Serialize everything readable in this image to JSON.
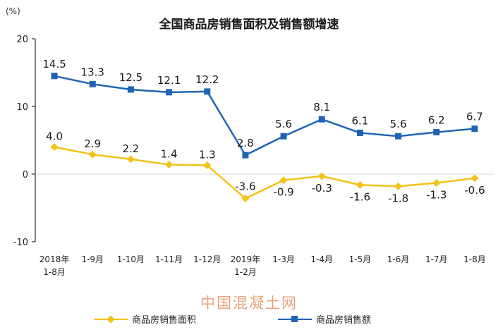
{
  "header": {
    "title": "全国商品房销售面积及销售额增速",
    "unit": "(%)"
  },
  "watermark": "中国混凝土网",
  "legend": {
    "area_label": "商品房销售面积",
    "sales_label": "商品房销售额"
  },
  "colors": {
    "area": "#f5c116",
    "sales": "#1f64b3",
    "axis": "#000000",
    "zero_line": "#d9d9d9"
  },
  "chart_data": {
    "type": "line",
    "title": "全国商品房销售面积及销售额增速",
    "ylabel": "(%)",
    "xlabel": "",
    "ylim": [
      -10,
      20
    ],
    "yticks": [
      -10,
      0,
      10,
      20
    ],
    "grid": false,
    "legend_position": "bottom",
    "categories": [
      [
        "2018年",
        "1-8月"
      ],
      [
        "1-9月"
      ],
      [
        "1-10月"
      ],
      [
        "1-11月"
      ],
      [
        "1-12月"
      ],
      [
        "2019年",
        "1-2月"
      ],
      [
        "1-3月"
      ],
      [
        "1-4月"
      ],
      [
        "1-5月"
      ],
      [
        "1-6月"
      ],
      [
        "1-7月"
      ],
      [
        "1-8月"
      ]
    ],
    "series": [
      {
        "name": "商品房销售面积",
        "color": "#f5c116",
        "marker": "diamond",
        "values": [
          4.0,
          2.9,
          2.2,
          1.4,
          1.3,
          -3.6,
          -0.9,
          -0.3,
          -1.6,
          -1.8,
          -1.3,
          -0.6
        ],
        "labels": [
          "4.0",
          "2.9",
          "2.2",
          "1.4",
          "1.3",
          "-3.6",
          "-0.9",
          "-0.3",
          "-1.6",
          "-1.8",
          "-1.3",
          "-0.6"
        ]
      },
      {
        "name": "商品房销售额",
        "color": "#1f64b3",
        "marker": "square",
        "values": [
          14.5,
          13.3,
          12.5,
          12.1,
          12.2,
          2.8,
          5.6,
          8.1,
          6.1,
          5.6,
          6.2,
          6.7
        ],
        "labels": [
          "14.5",
          "13.3",
          "12.5",
          "12.1",
          "12.2",
          "2.8",
          "5.6",
          "8.1",
          "6.1",
          "5.6",
          "6.2",
          "6.7"
        ]
      }
    ]
  }
}
